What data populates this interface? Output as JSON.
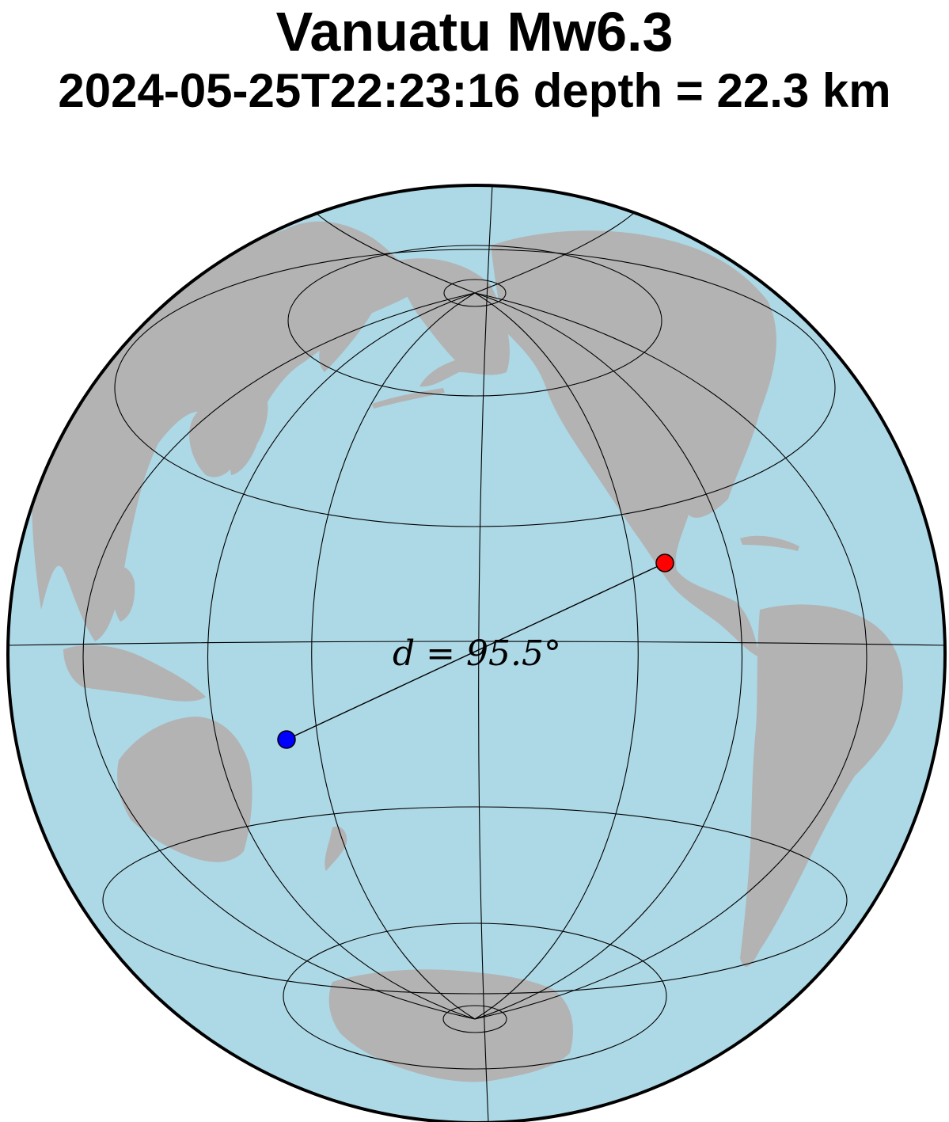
{
  "title": "Vanuatu Mw6.3",
  "subtitle": "2024-05-25T22:23:16 depth = 22.3 km",
  "distance_label": "d = 95.5°",
  "colors": {
    "ocean": "#add8e6",
    "land": "#b3b3b3",
    "grid": "#000000",
    "earthquake_marker": "#0000ff",
    "station_marker": "#ff0000"
  },
  "map": {
    "projection": "orthographic",
    "graticule": "meridians and parallels",
    "markers": [
      "earthquake",
      "station"
    ],
    "path": "great-circle line between earthquake and station"
  }
}
